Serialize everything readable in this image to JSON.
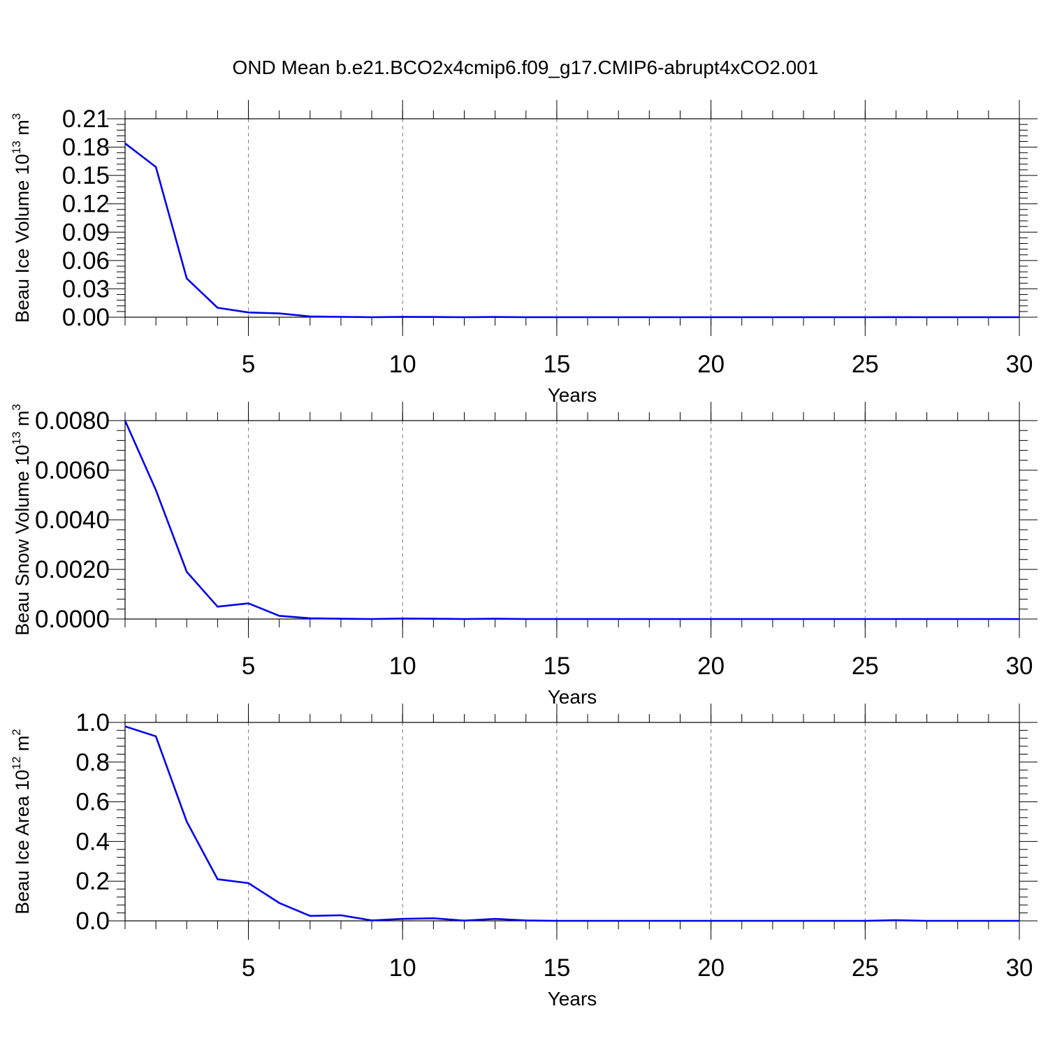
{
  "title": "OND Mean b.e21.BCO2x4cmip6.f09_g17.CMIP6-abrupt4xCO2.001",
  "chart_data": [
    {
      "type": "line",
      "xlabel": "Years",
      "ylabel": {
        "prefix": "Beau Ice Volume 10",
        "exp": "13",
        "unit": " m",
        "unit_exp": "3"
      },
      "xlim": [
        1,
        30
      ],
      "ylim": [
        0,
        0.21
      ],
      "xticks": [
        "5",
        "10",
        "15",
        "20",
        "25",
        "30"
      ],
      "yticks": [
        "0.00",
        "0.03",
        "0.06",
        "0.09",
        "0.12",
        "0.15",
        "0.18",
        "0.21"
      ],
      "grid": "x-dashed",
      "color": "#0000ee",
      "x": [
        1,
        2,
        3,
        4,
        5,
        6,
        7,
        8,
        9,
        10,
        11,
        12,
        13,
        14,
        15,
        16,
        17,
        18,
        19,
        20,
        21,
        22,
        23,
        24,
        25,
        26,
        27,
        28,
        29,
        30
      ],
      "y": [
        0.184,
        0.159,
        0.041,
        0.01,
        0.005,
        0.004,
        0.0008,
        0.0004,
        0,
        0.0003,
        0.0002,
        0,
        0.0002,
        0,
        0,
        0,
        0,
        0,
        0,
        0,
        0,
        0,
        0,
        0,
        0,
        0.0001,
        0,
        0,
        0,
        0
      ]
    },
    {
      "type": "line",
      "xlabel": "Years",
      "ylabel": {
        "prefix": "Beau Snow Volume 10",
        "exp": "13",
        "unit": " m",
        "unit_exp": "3"
      },
      "xlim": [
        1,
        30
      ],
      "ylim": [
        0,
        0.008
      ],
      "xticks": [
        "5",
        "10",
        "15",
        "20",
        "25",
        "30"
      ],
      "yticks": [
        "0.0000",
        "0.0020",
        "0.0040",
        "0.0060",
        "0.0080"
      ],
      "grid": "x-dashed",
      "color": "#0000ee",
      "x": [
        1,
        2,
        3,
        4,
        5,
        6,
        7,
        8,
        9,
        10,
        11,
        12,
        13,
        14,
        15,
        16,
        17,
        18,
        19,
        20,
        21,
        22,
        23,
        24,
        25,
        26,
        27,
        28,
        29,
        30
      ],
      "y": [
        0.008,
        0.0052,
        0.0019,
        0.0005,
        0.00063,
        0.00013,
        3e-05,
        1e-05,
        0,
        2e-05,
        1e-05,
        0,
        1e-05,
        0,
        0,
        0,
        0,
        0,
        0,
        0,
        0,
        0,
        0,
        0,
        0,
        0,
        0,
        0,
        0,
        0
      ]
    },
    {
      "type": "line",
      "xlabel": "Years",
      "ylabel": {
        "prefix": "Beau Ice Area 10",
        "exp": "12",
        "unit": " m",
        "unit_exp": "2"
      },
      "xlim": [
        1,
        30
      ],
      "ylim": [
        0,
        1.0
      ],
      "xticks": [
        "5",
        "10",
        "15",
        "20",
        "25",
        "30"
      ],
      "yticks": [
        "0.0",
        "0.2",
        "0.4",
        "0.6",
        "0.8",
        "1.0"
      ],
      "grid": "x-dashed",
      "color": "#0000ee",
      "x": [
        1,
        2,
        3,
        4,
        5,
        6,
        7,
        8,
        9,
        10,
        11,
        12,
        13,
        14,
        15,
        16,
        17,
        18,
        19,
        20,
        21,
        22,
        23,
        24,
        25,
        26,
        27,
        28,
        29,
        30
      ],
      "y": [
        0.98,
        0.93,
        0.5,
        0.21,
        0.19,
        0.09,
        0.025,
        0.028,
        0.002,
        0.01,
        0.013,
        0.001,
        0.01,
        0.002,
        0,
        0,
        0,
        0,
        0,
        0,
        0,
        0,
        0,
        0,
        0,
        0.003,
        0,
        0,
        0,
        0
      ]
    }
  ]
}
